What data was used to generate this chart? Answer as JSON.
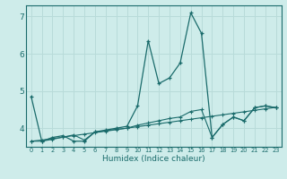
{
  "xlabel": "Humidex (Indice chaleur)",
  "xlim": [
    -0.5,
    23.5
  ],
  "ylim": [
    3.5,
    7.3
  ],
  "yticks": [
    4,
    5,
    6,
    7
  ],
  "xticks": [
    0,
    1,
    2,
    3,
    4,
    5,
    6,
    7,
    8,
    9,
    10,
    11,
    12,
    13,
    14,
    15,
    16,
    17,
    18,
    19,
    20,
    21,
    22,
    23
  ],
  "background_color": "#ceecea",
  "grid_color": "#b8dbd9",
  "line_color": "#1a6b6b",
  "line1_x": [
    0,
    1,
    2,
    3,
    4,
    5,
    6,
    7,
    8,
    9,
    10,
    11,
    12,
    13,
    14,
    15,
    16,
    17,
    18,
    19,
    20,
    21,
    22,
    23
  ],
  "line1_y": [
    4.85,
    3.65,
    3.75,
    3.8,
    3.65,
    3.65,
    3.9,
    3.95,
    4.0,
    4.05,
    4.6,
    6.35,
    5.2,
    5.35,
    5.75,
    7.1,
    6.55,
    3.75,
    4.1,
    4.3,
    4.2,
    4.55,
    4.6,
    4.55
  ],
  "line2_x": [
    0,
    1,
    2,
    3,
    4,
    5,
    6,
    7,
    8,
    9,
    10,
    11,
    12,
    13,
    14,
    15,
    16,
    17,
    18,
    19,
    20,
    21,
    22,
    23
  ],
  "line2_y": [
    3.65,
    3.68,
    3.72,
    3.76,
    3.8,
    3.84,
    3.88,
    3.92,
    3.96,
    4.0,
    4.04,
    4.08,
    4.12,
    4.16,
    4.2,
    4.24,
    4.28,
    4.32,
    4.36,
    4.4,
    4.44,
    4.48,
    4.52,
    4.56
  ],
  "line3_x": [
    0,
    1,
    2,
    3,
    4,
    5,
    6,
    7,
    8,
    9,
    10,
    11,
    12,
    13,
    14,
    15,
    16,
    17,
    18,
    19,
    20,
    21,
    22,
    23
  ],
  "line3_y": [
    3.65,
    3.65,
    3.7,
    3.76,
    3.82,
    3.68,
    3.9,
    3.93,
    3.97,
    4.0,
    4.08,
    4.14,
    4.2,
    4.26,
    4.3,
    4.45,
    4.5,
    3.75,
    4.1,
    4.3,
    4.2,
    4.55,
    4.6,
    4.55
  ]
}
